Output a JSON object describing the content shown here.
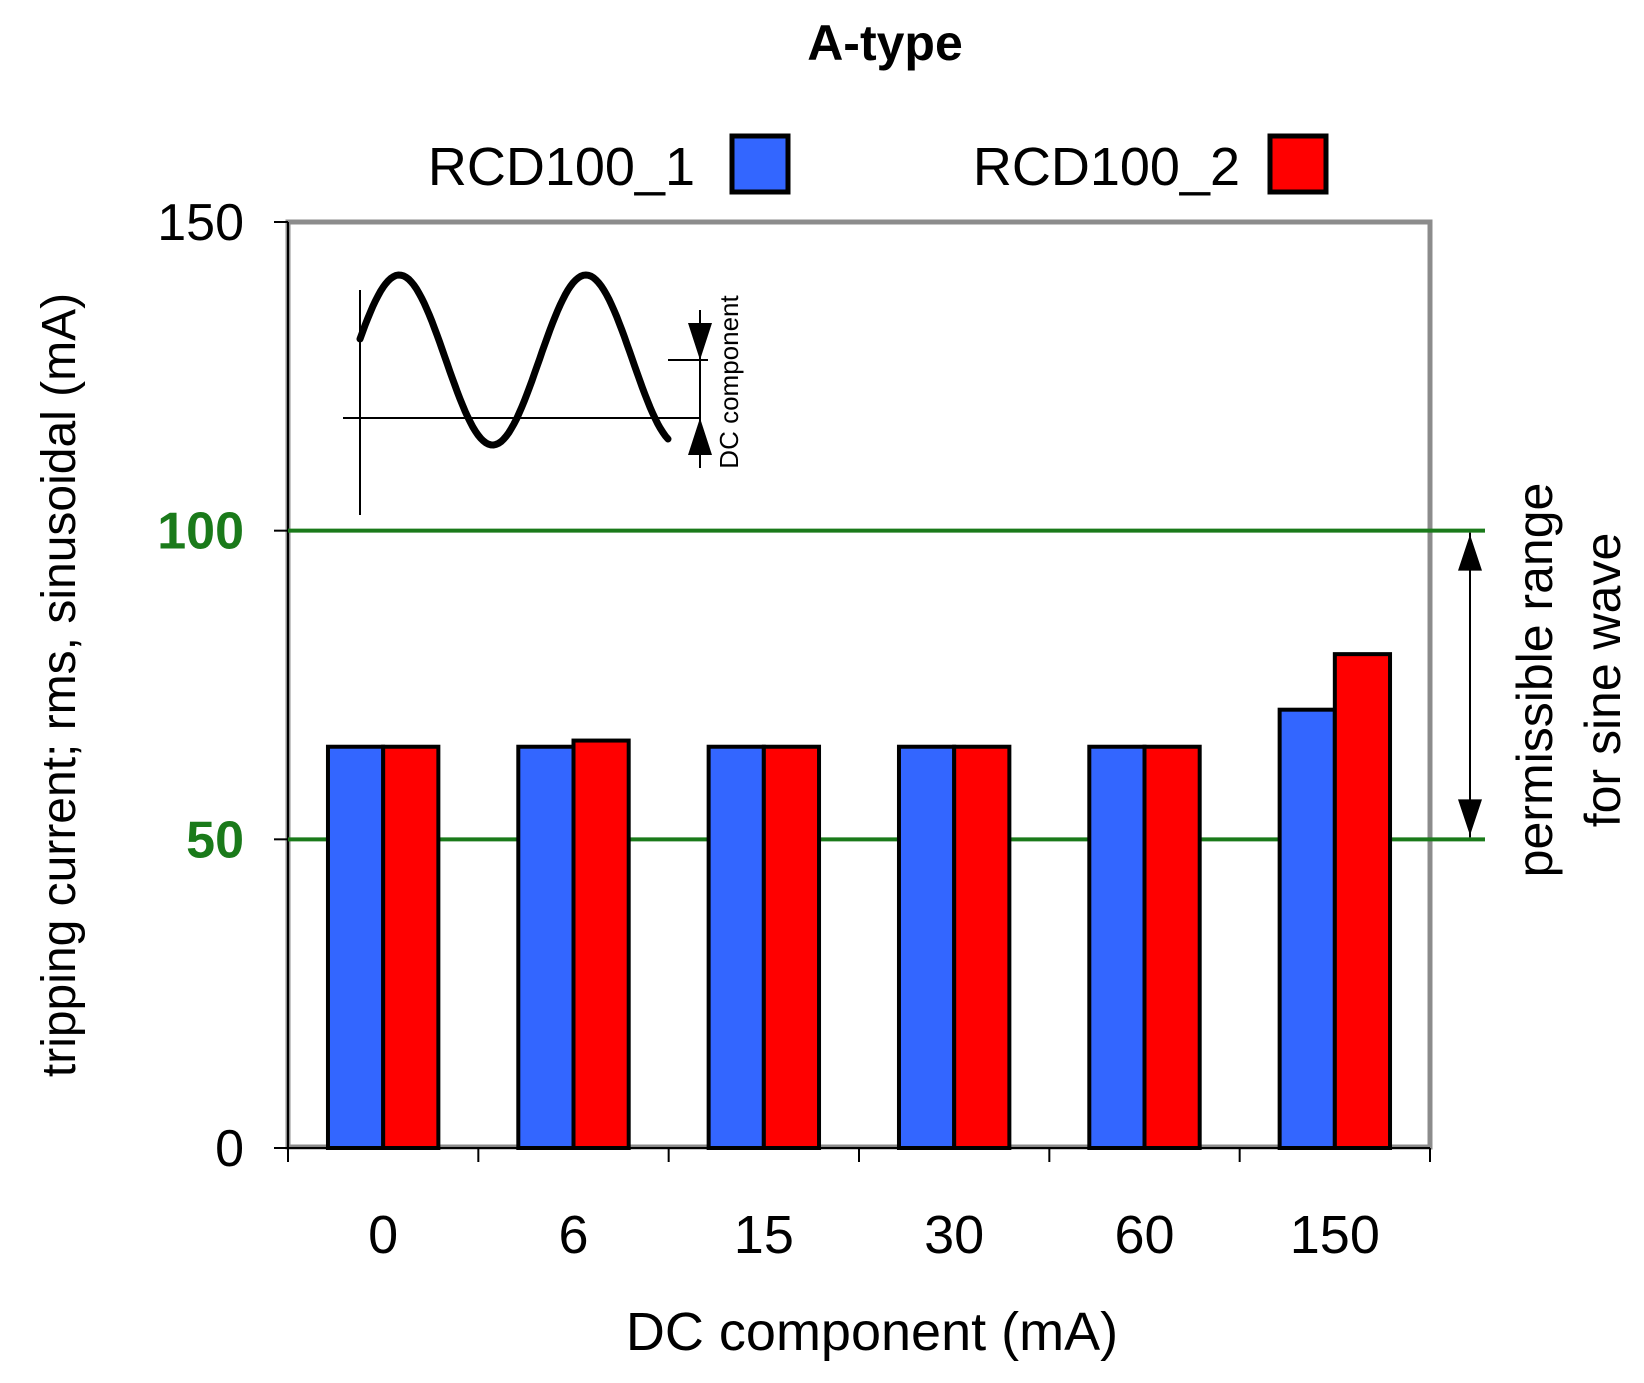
{
  "chart_data": {
    "type": "bar",
    "title": "A-type",
    "xlabel": "DC component (mA)",
    "ylabel": "tripping current; rms, sinusoidal (mA)",
    "categories": [
      "0",
      "6",
      "15",
      "30",
      "60",
      "150"
    ],
    "series": [
      {
        "name": "RCD100_1",
        "values": [
          65,
          65,
          65,
          65,
          65,
          71
        ],
        "color": "#3366ff"
      },
      {
        "name": "RCD100_2",
        "values": [
          65,
          66,
          65,
          65,
          65,
          80
        ],
        "color": "#ff0000"
      }
    ],
    "ylim": [
      0,
      150
    ],
    "yticks": [
      0,
      50,
      100,
      150
    ],
    "highlighted_yticks": [
      50,
      100
    ],
    "legend_position": "top",
    "reference_lines": [
      {
        "value": 100,
        "color": "#1a7a1a"
      },
      {
        "value": 50,
        "color": "#1a7a1a"
      }
    ],
    "range_annotation": {
      "from": 50,
      "to": 100,
      "line1": "permissible range",
      "line2": "for sine wave"
    },
    "inset": {
      "label_top": "DC component",
      "label_bottom": "DC component"
    }
  }
}
